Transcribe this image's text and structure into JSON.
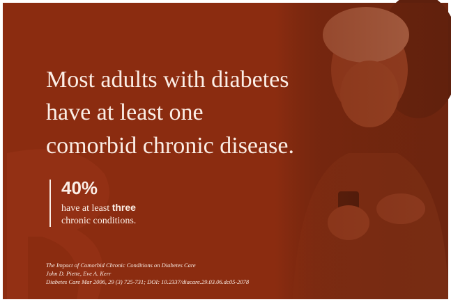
{
  "headline": {
    "lines": [
      "Most adults with diabetes",
      "have at least one",
      "comorbid chronic disease."
    ]
  },
  "stat": {
    "figure": "40%",
    "text_before": "have at least",
    "emphasis": "three",
    "text_after": "chronic conditions."
  },
  "citation": {
    "lines": [
      "The Impact of Comorbid Chronic Conditions on Diabetes Care",
      "John D. Piette, Eve A. Kerr",
      "Diabetes Care Mar 2006, 29 (3) 725-731; DOI: 10.2337/diacare.29.03.06.dc05-2078"
    ]
  }
}
